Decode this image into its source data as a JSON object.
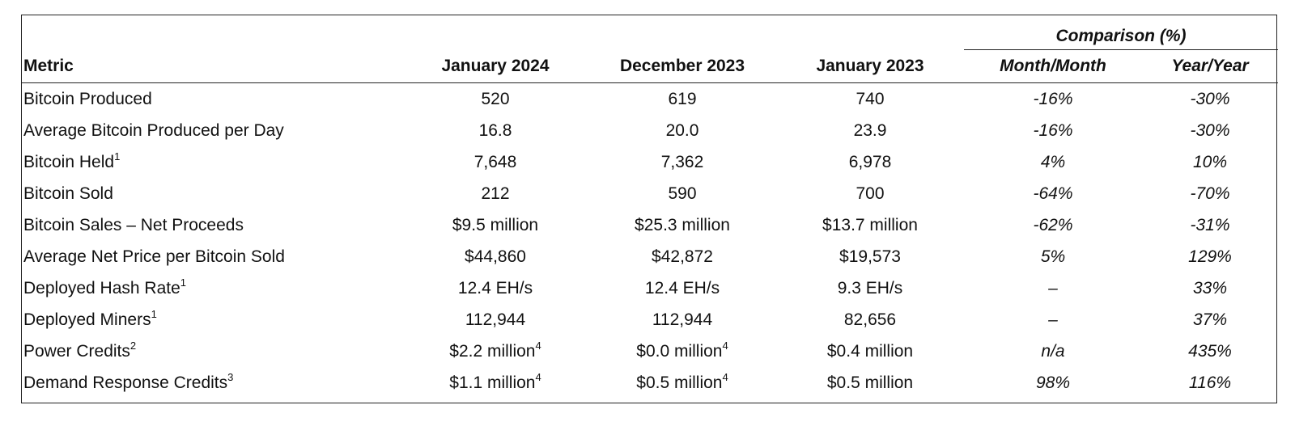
{
  "table": {
    "group_header": "Comparison (%)",
    "headers": {
      "metric": "Metric",
      "jan_2024": "January 2024",
      "dec_2023": "December 2023",
      "jan_2023": "January 2023",
      "mom": "Month/Month",
      "yoy": "Year/Year"
    },
    "rows": [
      {
        "metric": "Bitcoin Produced",
        "metric_sup": "",
        "jan_2024": "520",
        "jan_2024_sup": "",
        "dec_2023": "619",
        "dec_2023_sup": "",
        "jan_2023": "740",
        "mom": "-16%",
        "yoy": "-30%"
      },
      {
        "metric": "Average Bitcoin Produced per Day",
        "metric_sup": "",
        "jan_2024": "16.8",
        "jan_2024_sup": "",
        "dec_2023": "20.0",
        "dec_2023_sup": "",
        "jan_2023": "23.9",
        "mom": "-16%",
        "yoy": "-30%"
      },
      {
        "metric": "Bitcoin Held",
        "metric_sup": "1",
        "jan_2024": "7,648",
        "jan_2024_sup": "",
        "dec_2023": "7,362",
        "dec_2023_sup": "",
        "jan_2023": "6,978",
        "mom": "4%",
        "yoy": "10%"
      },
      {
        "metric": "Bitcoin Sold",
        "metric_sup": "",
        "jan_2024": "212",
        "jan_2024_sup": "",
        "dec_2023": "590",
        "dec_2023_sup": "",
        "jan_2023": "700",
        "mom": "-64%",
        "yoy": "-70%"
      },
      {
        "metric": "Bitcoin Sales – Net Proceeds",
        "metric_sup": "",
        "jan_2024": "$9.5 million",
        "jan_2024_sup": "",
        "dec_2023": "$25.3 million",
        "dec_2023_sup": "",
        "jan_2023": "$13.7 million",
        "mom": "-62%",
        "yoy": "-31%"
      },
      {
        "metric": "Average Net Price per Bitcoin Sold",
        "metric_sup": "",
        "jan_2024": "$44,860",
        "jan_2024_sup": "",
        "dec_2023": "$42,872",
        "dec_2023_sup": "",
        "jan_2023": "$19,573",
        "mom": "5%",
        "yoy": "129%"
      },
      {
        "metric": "Deployed Hash Rate",
        "metric_sup": "1",
        "jan_2024": "12.4 EH/s",
        "jan_2024_sup": "",
        "dec_2023": "12.4 EH/s",
        "dec_2023_sup": "",
        "jan_2023": "9.3 EH/s",
        "mom": "–",
        "yoy": "33%"
      },
      {
        "metric": "Deployed Miners",
        "metric_sup": "1",
        "jan_2024": "112,944",
        "jan_2024_sup": "",
        "dec_2023": "112,944",
        "dec_2023_sup": "",
        "jan_2023": "82,656",
        "mom": "–",
        "yoy": "37%"
      },
      {
        "metric": "Power Credits",
        "metric_sup": "2",
        "jan_2024": "$2.2 million",
        "jan_2024_sup": "4",
        "dec_2023": "$0.0 million",
        "dec_2023_sup": "4",
        "jan_2023": "$0.4 million",
        "mom": "n/a",
        "yoy": "435%"
      },
      {
        "metric": "Demand Response Credits",
        "metric_sup": "3",
        "jan_2024": "$1.1 million",
        "jan_2024_sup": "4",
        "dec_2023": "$0.5 million",
        "dec_2023_sup": "4",
        "jan_2023": "$0.5 million",
        "mom": "98%",
        "yoy": "116%"
      }
    ]
  }
}
